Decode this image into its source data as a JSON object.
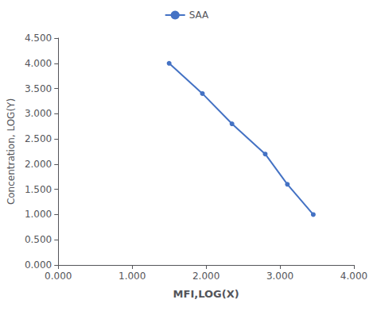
{
  "chart_data": {
    "type": "line",
    "x": [
      1.5,
      1.95,
      2.35,
      2.8,
      3.1,
      3.45
    ],
    "series": [
      {
        "name": "SAA",
        "color": "#4472C4",
        "marker": "circle",
        "values": [
          4.0,
          3.4,
          2.8,
          2.2,
          1.6,
          1.0
        ]
      }
    ],
    "xlabel": "MFI,LOG(X)",
    "ylabel": "Concentration, LOG(Y)",
    "xlim": [
      0.0,
      4.0
    ],
    "ylim": [
      0.0,
      4.5
    ],
    "xticks": [
      {
        "value": 0,
        "label": "0.000"
      },
      {
        "value": 1,
        "label": "1.000"
      },
      {
        "value": 2,
        "label": "2.000"
      },
      {
        "value": 3,
        "label": "3.000"
      },
      {
        "value": 4,
        "label": "4.000"
      }
    ],
    "yticks": [
      {
        "value": 0,
        "label": "0.000"
      },
      {
        "value": 0.5,
        "label": "0.500"
      },
      {
        "value": 1,
        "label": "1.000"
      },
      {
        "value": 1.5,
        "label": "1.500"
      },
      {
        "value": 2,
        "label": "2.000"
      },
      {
        "value": 2.5,
        "label": "2.500"
      },
      {
        "value": 3,
        "label": "3.000"
      },
      {
        "value": 3.5,
        "label": "3.500"
      },
      {
        "value": 4,
        "label": "4.000"
      },
      {
        "value": 4.5,
        "label": "4.500"
      }
    ],
    "grid": false,
    "legend": "top"
  }
}
